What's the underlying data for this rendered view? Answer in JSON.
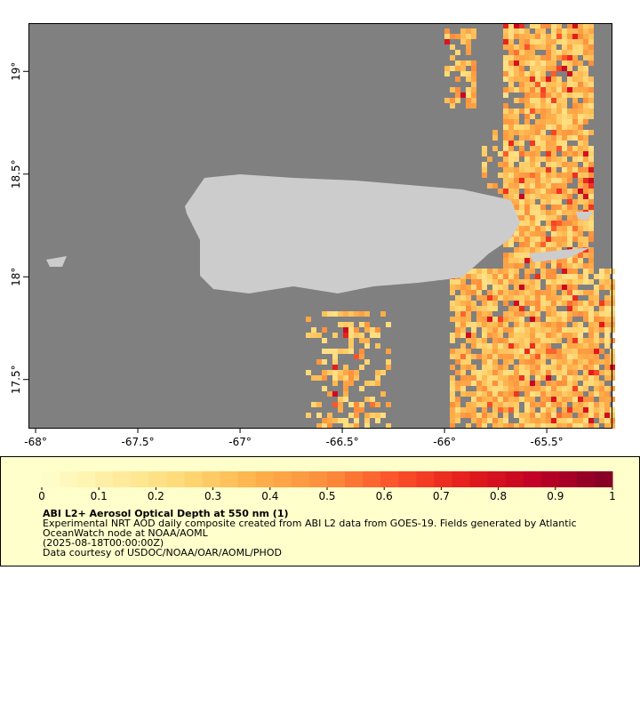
{
  "map": {
    "xlim": [
      -68.035,
      -65.183
    ],
    "ylim": [
      17.265,
      19.235
    ],
    "xticks": [
      {
        "value": -68,
        "label": "-68°"
      },
      {
        "value": -67.5,
        "label": "-67.5°"
      },
      {
        "value": -67,
        "label": "-67°"
      },
      {
        "value": -66.5,
        "label": "-66.5°"
      },
      {
        "value": -66,
        "label": "-66°"
      },
      {
        "value": -65.5,
        "label": "-65.5°"
      }
    ],
    "yticks": [
      {
        "value": 17.5,
        "label": "17.5°"
      },
      {
        "value": 18,
        "label": "18°"
      },
      {
        "value": 18.5,
        "label": "18.5°"
      },
      {
        "value": 19,
        "label": "19°"
      }
    ],
    "background_color": "#808080",
    "land_color": "#cccccc"
  },
  "colorbar": {
    "lim": [
      0,
      1
    ],
    "ticks": [
      0,
      0.1,
      0.2,
      0.3,
      0.4,
      0.5,
      0.6,
      0.7,
      0.8,
      0.9,
      1
    ],
    "colors": [
      "#ffffcc",
      "#ffeda0",
      "#fed976",
      "#feb24c",
      "#fd8d3c",
      "#fc4e2a",
      "#e31a1c",
      "#bd0026",
      "#800026"
    ]
  },
  "legend": {
    "title": "ABI L2+ Aerosol Optical Depth at 550 nm (1)",
    "lines": [
      "Experimental NRT AOD daily composite created from ABI L2 data from GOES-19. Fields generated by Atlantic",
      "OceanWatch node at NOAA/AOML",
      "(2025-08-18T00:00:00Z)",
      "Data courtesy of USDOC/NOAA/OAR/AOML/PHOD"
    ]
  }
}
